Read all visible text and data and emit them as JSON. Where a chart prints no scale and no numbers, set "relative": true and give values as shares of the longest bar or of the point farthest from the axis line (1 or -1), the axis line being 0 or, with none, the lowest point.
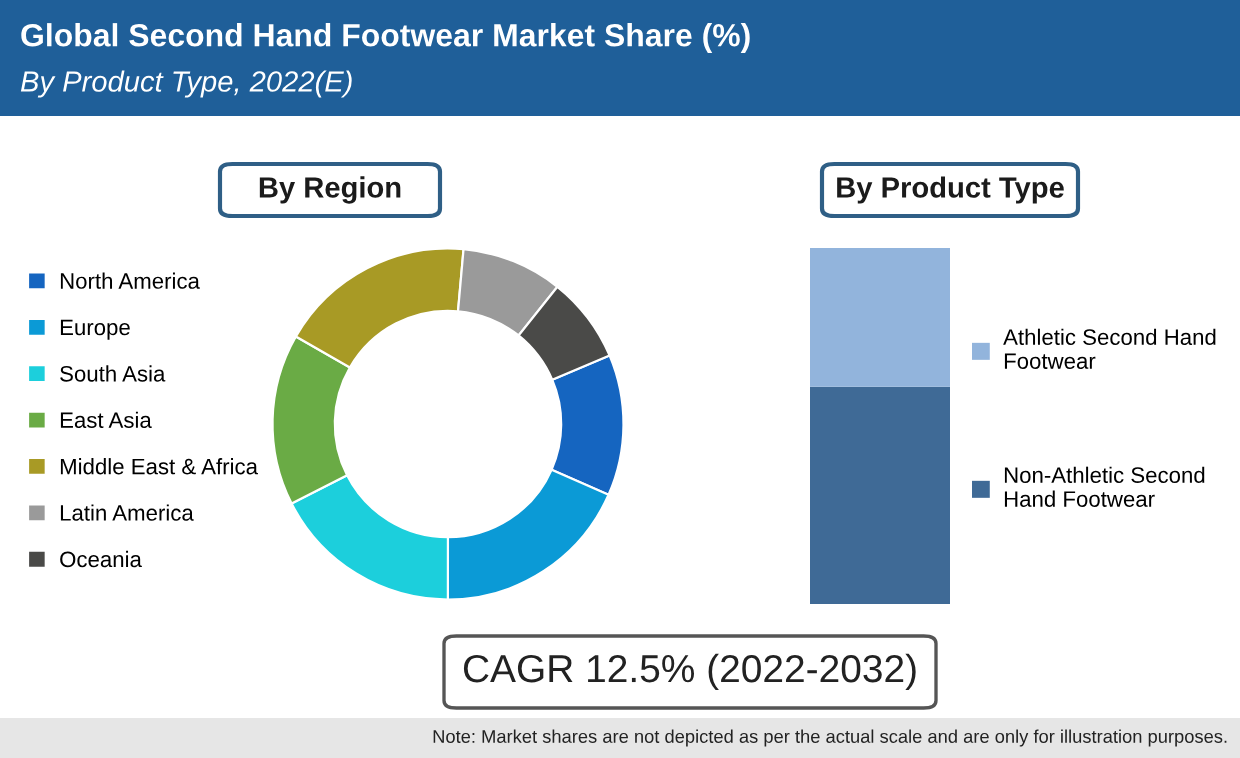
{
  "chart_data": [
    {
      "type": "donut",
      "title": "By Region",
      "categories": [
        "North America",
        "Europe",
        "South Asia",
        "East Asia",
        "Middle East & Africa",
        "Latin America",
        "Oceania"
      ],
      "values": [
        13.0,
        18.4,
        17.5,
        15.8,
        18.1,
        9.3,
        7.9
      ],
      "colors": [
        "#1565c0",
        "#0b9ad6",
        "#1ccfdc",
        "#6aab45",
        "#a89a25",
        "#9a9a9a",
        "#4a4a48"
      ],
      "legend": "left",
      "annotations": [
        "Global Second Hand Footwear Market Share (%)",
        "By Product Type, 2022(E)"
      ]
    },
    {
      "type": "bar",
      "title": "By Product Type",
      "relative": true,
      "stacked": true,
      "categories": [
        null
      ],
      "series": [
        {
          "name": "Non-Athletic Second Hand Footwear",
          "color": "#3f6a96",
          "values": [
            0.61
          ]
        },
        {
          "name": "Athletic Second Hand Footwear",
          "color": "#92b4dc",
          "values": [
            0.39
          ]
        }
      ],
      "legend": "right",
      "annotations": [
        "CAGR 12.5% (2022-2032)",
        "Note: Market shares are not depicted as per the actual scale and are only for illustration purposes."
      ]
    }
  ]
}
